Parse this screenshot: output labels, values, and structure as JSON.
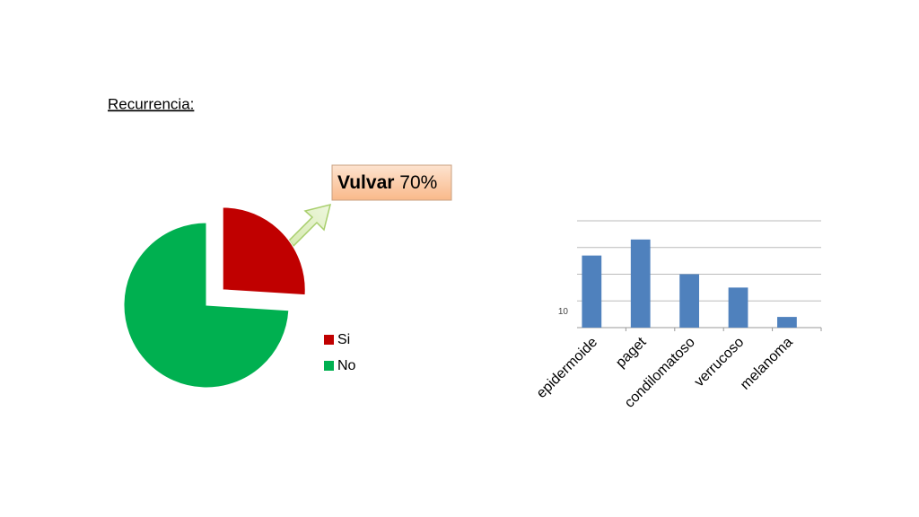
{
  "slide_title": "Recurrencia:",
  "chart_data": [
    {
      "type": "pie",
      "categories": [
        "Si",
        "No"
      ],
      "values": [
        26,
        74
      ],
      "colors": [
        "#c00000",
        "#00b050"
      ],
      "annotation": {
        "label": "Vulvar",
        "value": "70%"
      }
    },
    {
      "type": "bar",
      "categories": [
        "epidermoide",
        "paget",
        "condilomatoso",
        "verrucoso",
        "melanoma"
      ],
      "values": [
        27,
        33,
        20,
        15,
        4
      ],
      "color": "#4f81bd",
      "ylim": [
        0,
        40
      ],
      "yticks": [
        {
          "value": 0,
          "label": null
        },
        10,
        {
          "value": 20,
          "label": null
        },
        {
          "value": 30,
          "label": null
        },
        {
          "value": 40,
          "label": null
        }
      ],
      "grid": true
    }
  ]
}
